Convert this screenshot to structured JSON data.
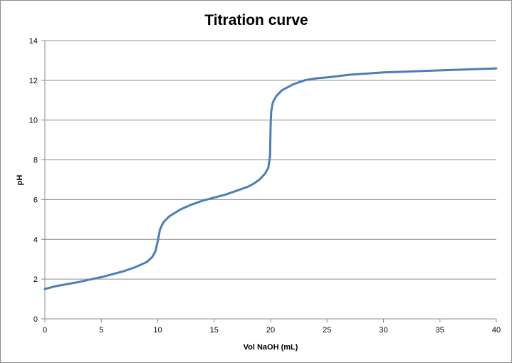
{
  "chart_data": {
    "type": "line",
    "title": "Titration curve",
    "xlabel": "Vol NaOH (mL)",
    "ylabel": "pH",
    "xlim": [
      0,
      40
    ],
    "ylim": [
      0,
      14
    ],
    "x_ticks": [
      0,
      5,
      10,
      15,
      20,
      25,
      30,
      35,
      40
    ],
    "y_ticks": [
      0,
      2,
      4,
      6,
      8,
      10,
      12,
      14
    ],
    "grid": "horizontal",
    "legend": "none",
    "series": [
      {
        "color": "#4a7ebb",
        "x": [
          0,
          1,
          2,
          3,
          4,
          5,
          6,
          7,
          8,
          9,
          9.5,
          9.8,
          10,
          10.2,
          10.5,
          11,
          12,
          13,
          14,
          15,
          16,
          17,
          18,
          18.5,
          19,
          19.5,
          19.8,
          19.95,
          20,
          20.05,
          20.2,
          20.5,
          21,
          22,
          23,
          24,
          25,
          27,
          30,
          35,
          40
        ],
        "y": [
          1.5,
          1.65,
          1.75,
          1.85,
          1.98,
          2.1,
          2.25,
          2.4,
          2.6,
          2.85,
          3.1,
          3.4,
          3.9,
          4.5,
          4.85,
          5.15,
          5.5,
          5.75,
          5.95,
          6.1,
          6.25,
          6.45,
          6.65,
          6.8,
          7.0,
          7.3,
          7.6,
          8.2,
          9.7,
          10.4,
          10.9,
          11.2,
          11.5,
          11.8,
          12.0,
          12.1,
          12.15,
          12.28,
          12.4,
          12.5,
          12.6
        ]
      }
    ]
  }
}
